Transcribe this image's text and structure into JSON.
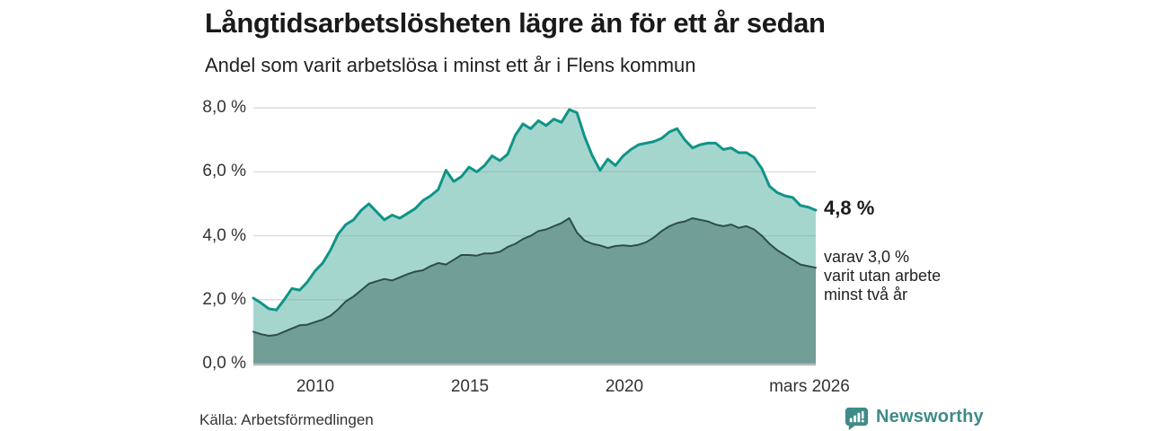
{
  "header": {
    "title": "Långtidsarbetslösheten lägre än för ett år sedan",
    "subtitle": "Andel som varit arbetslösa i minst ett år i Flens kommun"
  },
  "annotation": {
    "value": "4,8 %",
    "lines": [
      "varav 3,0 %",
      "varit utan arbete",
      "minst två år"
    ]
  },
  "footer": {
    "source": "Källa: Arbetsförmedlingen",
    "brand": "Newsworthy"
  },
  "colors": {
    "line_total": "#0f9488",
    "fill_total": "#a5d6ce",
    "line_two_year": "#2e4e48",
    "fill_two_year": "#719f98",
    "gridline": "#8c8c8c",
    "baseline": "#b9b9b9",
    "brand_teal": "#3f8b87"
  },
  "chart_data": {
    "type": "area",
    "title": "Långtidsarbetslösheten lägre än för ett år sedan",
    "subtitle": "Andel som varit arbetslösa i minst ett år i Flens kommun",
    "unit": "%",
    "x_range": [
      2008.0,
      2026.2
    ],
    "ylim": [
      0,
      8
    ],
    "grid": true,
    "legend_position": "right-annotation",
    "yticks": [
      {
        "label": "0,0 %",
        "value": 0
      },
      {
        "label": "2,0 %",
        "value": 2
      },
      {
        "label": "4,0 %",
        "value": 4
      },
      {
        "label": "6,0 %",
        "value": 6
      },
      {
        "label": "8,0 %",
        "value": 8
      }
    ],
    "xticks": [
      {
        "label": "2010",
        "year": 2010
      },
      {
        "label": "2015",
        "year": 2015
      },
      {
        "label": "2020",
        "year": 2020
      },
      {
        "label": "mars 2026",
        "year": 2026.0
      }
    ],
    "series": [
      {
        "name": "Arbetslösa minst ett år",
        "last_value_label": "4,8 %",
        "values": [
          2.05,
          1.9,
          1.72,
          1.68,
          2.0,
          2.35,
          2.3,
          2.55,
          2.9,
          3.15,
          3.55,
          4.05,
          4.35,
          4.5,
          4.8,
          5.0,
          4.75,
          4.5,
          4.65,
          4.55,
          4.7,
          4.85,
          5.1,
          5.25,
          5.45,
          6.05,
          5.7,
          5.85,
          6.15,
          6.0,
          6.2,
          6.5,
          6.35,
          6.55,
          7.15,
          7.5,
          7.35,
          7.6,
          7.45,
          7.65,
          7.55,
          7.95,
          7.85,
          7.1,
          6.5,
          6.05,
          6.4,
          6.2,
          6.5,
          6.7,
          6.85,
          6.9,
          6.95,
          7.05,
          7.25,
          7.35,
          7.0,
          6.75,
          6.85,
          6.9,
          6.9,
          6.7,
          6.75,
          6.6,
          6.6,
          6.45,
          6.1,
          5.55,
          5.35,
          5.25,
          5.2,
          4.95,
          4.9,
          4.8
        ]
      },
      {
        "name": "varav utan arbete minst två år",
        "last_value_label": "3,0 %",
        "values": [
          1.0,
          0.92,
          0.87,
          0.9,
          1.0,
          1.1,
          1.2,
          1.22,
          1.3,
          1.38,
          1.5,
          1.7,
          1.95,
          2.1,
          2.3,
          2.5,
          2.58,
          2.65,
          2.6,
          2.7,
          2.8,
          2.88,
          2.92,
          3.05,
          3.15,
          3.1,
          3.25,
          3.4,
          3.4,
          3.38,
          3.45,
          3.45,
          3.5,
          3.65,
          3.75,
          3.9,
          4.0,
          4.15,
          4.2,
          4.3,
          4.4,
          4.55,
          4.1,
          3.85,
          3.75,
          3.7,
          3.62,
          3.68,
          3.7,
          3.68,
          3.72,
          3.8,
          3.95,
          4.15,
          4.3,
          4.4,
          4.45,
          4.55,
          4.5,
          4.45,
          4.35,
          4.3,
          4.35,
          4.25,
          4.3,
          4.2,
          4.0,
          3.75,
          3.55,
          3.4,
          3.25,
          3.1,
          3.05,
          3.0
        ]
      }
    ]
  }
}
